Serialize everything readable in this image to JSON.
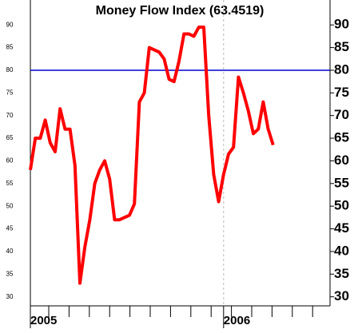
{
  "chart_data": {
    "type": "line",
    "title": "Money Flow Index (63.4519)",
    "categories": [
      "2005",
      null,
      null,
      null,
      null,
      null,
      null,
      null,
      null,
      null,
      null,
      null,
      null,
      null,
      null,
      null,
      null,
      null,
      null,
      null,
      null,
      null,
      null,
      null,
      null,
      null,
      null,
      null,
      null,
      null,
      null,
      null,
      null,
      null,
      null,
      null,
      null,
      null,
      null,
      "2006",
      null,
      null,
      null,
      null,
      null,
      null,
      null,
      null,
      null,
      null
    ],
    "series": [
      {
        "name": "Money Flow Index",
        "color": "#ff0000",
        "values": [
          58,
          65,
          65,
          69,
          64,
          62,
          71.5,
          67,
          67,
          59,
          33,
          41,
          47,
          55,
          58,
          60,
          56,
          47,
          47,
          47.5,
          48,
          50.5,
          73,
          75,
          85,
          84.5,
          84,
          82.5,
          78,
          77.5,
          82,
          88,
          88,
          87.5,
          89.5,
          89.5,
          70,
          57,
          51,
          57,
          61.5,
          63,
          78.5,
          75,
          71,
          66,
          67,
          73,
          67,
          63.5
        ]
      }
    ],
    "ylim": [
      28,
      95.5
    ],
    "yticks": [
      30,
      35,
      40,
      45,
      50,
      55,
      60,
      65,
      70,
      75,
      80,
      85,
      90
    ],
    "reference_line": {
      "value": 80,
      "color": "#0000cc"
    }
  }
}
